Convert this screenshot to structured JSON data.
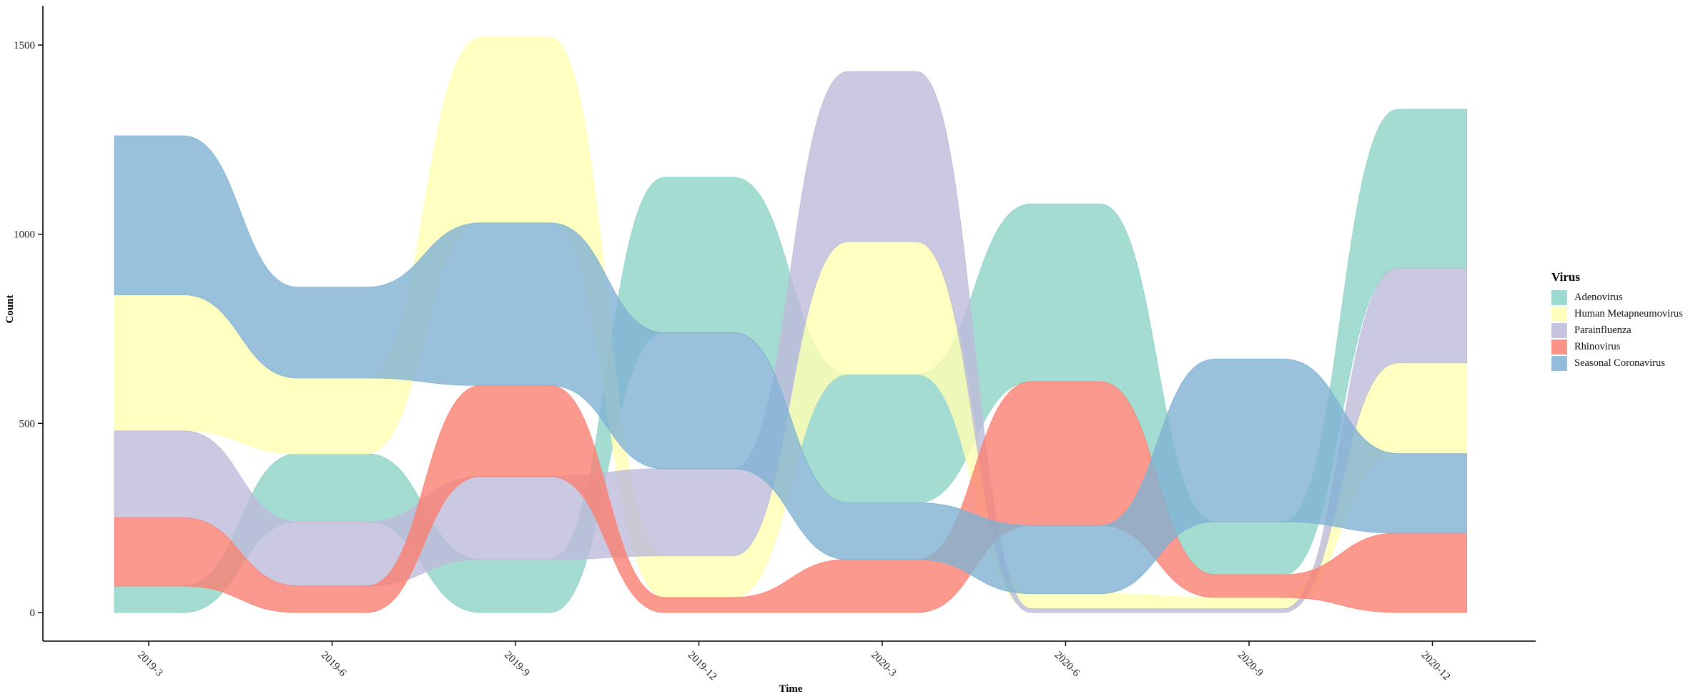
{
  "chart_data": {
    "type": "area",
    "subtype": "bump-stream (stacked, ranked)",
    "title": "",
    "xlabel": "Time",
    "ylabel": "Count",
    "categories": [
      "2019-3",
      "2019-6",
      "2019-9",
      "2019-12",
      "2020-3",
      "2020-6",
      "2020-9",
      "2020-12"
    ],
    "y_ticks": [
      0,
      500,
      1000,
      1500
    ],
    "ylim": [
      -75,
      1600
    ],
    "grid": false,
    "legend": {
      "title": "Virus",
      "position": "right"
    },
    "series": [
      {
        "name": "Adenovirus",
        "color": "#8dd3c7",
        "values": [
          70,
          180,
          140,
          410,
          340,
          470,
          140,
          420
        ]
      },
      {
        "name": "Human Metapneumovirus",
        "color": "#ffffb3",
        "values": [
          360,
          200,
          490,
          110,
          350,
          40,
          30,
          240
        ]
      },
      {
        "name": "Parainfluenza",
        "color": "#bebada",
        "values": [
          230,
          170,
          220,
          230,
          450,
          10,
          10,
          250
        ]
      },
      {
        "name": "Rhinovirus",
        "color": "#fb8072",
        "values": [
          180,
          70,
          240,
          40,
          140,
          380,
          60,
          210
        ]
      },
      {
        "name": "Seasonal Coronavirus",
        "color": "#80b1d3",
        "values": [
          420,
          240,
          430,
          360,
          150,
          180,
          430,
          210
        ]
      }
    ]
  }
}
